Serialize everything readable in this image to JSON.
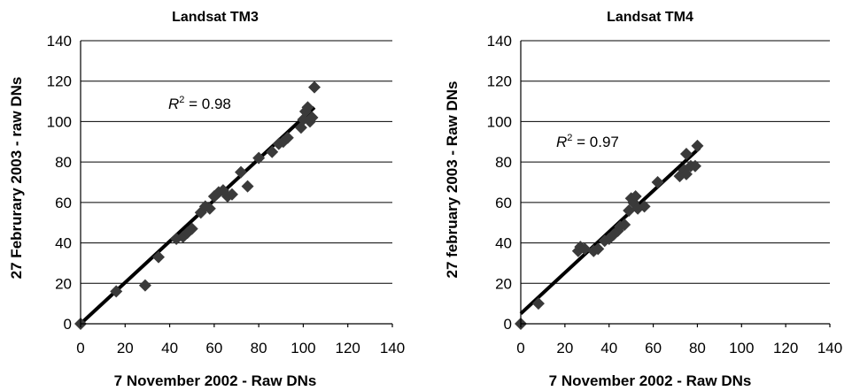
{
  "chart_data": [
    {
      "type": "scatter",
      "title": "Landsat TM3",
      "xlabel": "7 November 2002 - Raw DNs",
      "ylabel": "27 Februrary 2003 - raw DNs",
      "xlim": [
        0,
        140
      ],
      "ylim": [
        0,
        140
      ],
      "xticks": [
        "0",
        "20",
        "40",
        "60",
        "80",
        "100",
        "120",
        "140"
      ],
      "yticks": [
        "0",
        "20",
        "40",
        "60",
        "80",
        "100",
        "120",
        "140"
      ],
      "grid": "horizontal",
      "r2_text": "0.98",
      "trendline": {
        "x": [
          0,
          105
        ],
        "y": [
          0,
          107
        ]
      },
      "points": [
        {
          "x": 0,
          "y": 0
        },
        {
          "x": 16,
          "y": 16
        },
        {
          "x": 29,
          "y": 19
        },
        {
          "x": 35,
          "y": 33
        },
        {
          "x": 43,
          "y": 42
        },
        {
          "x": 46,
          "y": 43
        },
        {
          "x": 48,
          "y": 45
        },
        {
          "x": 50,
          "y": 47
        },
        {
          "x": 54,
          "y": 55
        },
        {
          "x": 56,
          "y": 58
        },
        {
          "x": 58,
          "y": 57
        },
        {
          "x": 60,
          "y": 63
        },
        {
          "x": 62,
          "y": 65
        },
        {
          "x": 64,
          "y": 66
        },
        {
          "x": 66,
          "y": 63
        },
        {
          "x": 68,
          "y": 64
        },
        {
          "x": 72,
          "y": 75
        },
        {
          "x": 75,
          "y": 68
        },
        {
          "x": 80,
          "y": 82
        },
        {
          "x": 86,
          "y": 85
        },
        {
          "x": 89,
          "y": 89
        },
        {
          "x": 91,
          "y": 90
        },
        {
          "x": 93,
          "y": 92
        },
        {
          "x": 99,
          "y": 97
        },
        {
          "x": 100,
          "y": 101
        },
        {
          "x": 101,
          "y": 105
        },
        {
          "x": 102,
          "y": 107
        },
        {
          "x": 103,
          "y": 100
        },
        {
          "x": 104,
          "y": 102
        },
        {
          "x": 105,
          "y": 117
        }
      ]
    },
    {
      "type": "scatter",
      "title": "Landsat TM4",
      "xlabel": "7 November 2002 - Raw DNs",
      "ylabel": "27 february 2003 - Raw DNs",
      "xlim": [
        0,
        140
      ],
      "ylim": [
        0,
        140
      ],
      "xticks": [
        "0",
        "20",
        "40",
        "60",
        "80",
        "100",
        "120",
        "140"
      ],
      "yticks": [
        "0",
        "20",
        "40",
        "60",
        "80",
        "100",
        "120",
        "140"
      ],
      "grid": "horizontal",
      "r2_text": "0.97",
      "trendline": {
        "x": [
          0,
          81
        ],
        "y": [
          5,
          87
        ]
      },
      "points": [
        {
          "x": 0,
          "y": 0
        },
        {
          "x": 8,
          "y": 10
        },
        {
          "x": 26,
          "y": 36
        },
        {
          "x": 27,
          "y": 38
        },
        {
          "x": 29,
          "y": 37
        },
        {
          "x": 33,
          "y": 36
        },
        {
          "x": 35,
          "y": 37
        },
        {
          "x": 38,
          "y": 41
        },
        {
          "x": 40,
          "y": 42
        },
        {
          "x": 42,
          "y": 44
        },
        {
          "x": 44,
          "y": 46
        },
        {
          "x": 45,
          "y": 48
        },
        {
          "x": 47,
          "y": 49
        },
        {
          "x": 49,
          "y": 56
        },
        {
          "x": 50,
          "y": 62
        },
        {
          "x": 51,
          "y": 60
        },
        {
          "x": 52,
          "y": 63
        },
        {
          "x": 53,
          "y": 57
        },
        {
          "x": 56,
          "y": 58
        },
        {
          "x": 62,
          "y": 70
        },
        {
          "x": 72,
          "y": 73
        },
        {
          "x": 74,
          "y": 76
        },
        {
          "x": 75,
          "y": 74
        },
        {
          "x": 75,
          "y": 84
        },
        {
          "x": 77,
          "y": 78
        },
        {
          "x": 79,
          "y": 78
        },
        {
          "x": 80,
          "y": 88
        }
      ]
    }
  ]
}
